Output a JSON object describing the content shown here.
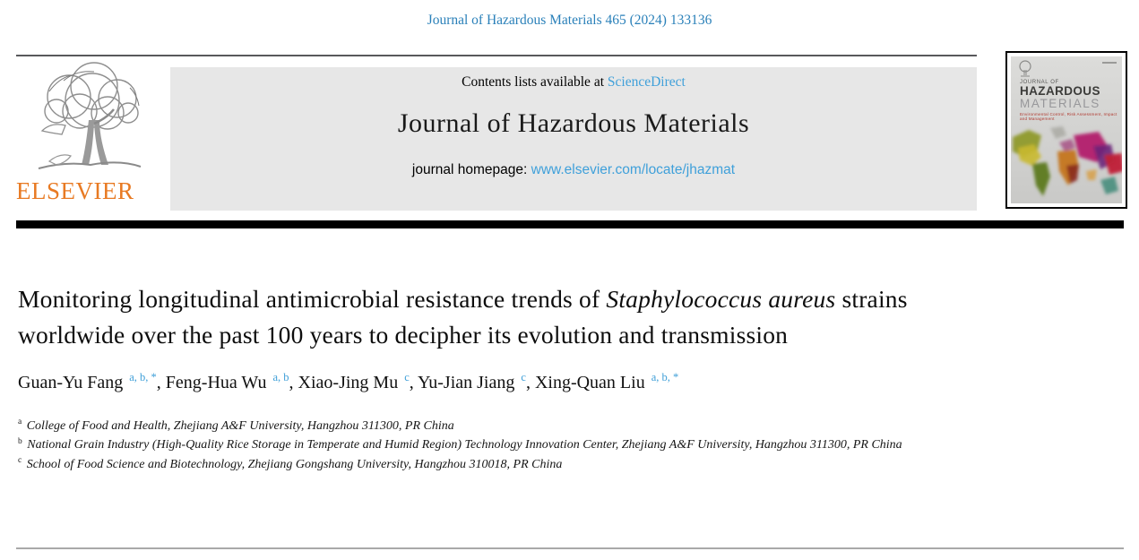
{
  "page": {
    "citation": "Journal of Hazardous Materials 465 (2024) 133136"
  },
  "header": {
    "contents_line_prefix": "Contents lists available at ",
    "sciencedirect_link": "ScienceDirect",
    "journal_title": "Journal of Hazardous Materials",
    "homepage_prefix": "journal homepage: ",
    "homepage_url": "www.elsevier.com/locate/jhazmat",
    "publisher": "ELSEVIER"
  },
  "cover": {
    "line1": "JOURNAL OF",
    "line2": "HAZARDOUS",
    "line3": "MATERIALS",
    "subtitle": "Environmental Control, Risk Assessment, Impact and Management"
  },
  "article": {
    "title_part1": "Monitoring longitudinal antimicrobial resistance trends of ",
    "title_italic": "Staphylococcus aureus",
    "title_part2": " strains worldwide over the past 100 years to decipher its evolution and transmission",
    "authors": [
      {
        "name": "Guan-Yu Fang",
        "sup": "a, b, *"
      },
      {
        "name": "Feng-Hua Wu",
        "sup": "a, b"
      },
      {
        "name": "Xiao-Jing Mu",
        "sup": "c"
      },
      {
        "name": "Yu-Jian Jiang",
        "sup": "c"
      },
      {
        "name": "Xing-Quan Liu",
        "sup": "a, b, *"
      }
    ],
    "affiliations": [
      {
        "sup": "a",
        "text": "College of Food and Health, Zhejiang A&F University, Hangzhou 311300, PR China"
      },
      {
        "sup": "b",
        "text": "National Grain Industry (High-Quality Rice Storage in Temperate and Humid Region) Technology Innovation Center, Zhejiang A&F University, Hangzhou 311300, PR China"
      },
      {
        "sup": "c",
        "text": "School of Food Science and Biotechnology, Zhejiang Gongshang University, Hangzhou 310018, PR China"
      }
    ]
  },
  "colors": {
    "citation_blue": "#2a80b9",
    "link_blue": "#3fa0da",
    "superscript_blue": "#3f9fd8",
    "elsevier_orange": "#e87a23",
    "banner_gray": "#e7e7e7",
    "divider_black": "#000000"
  }
}
